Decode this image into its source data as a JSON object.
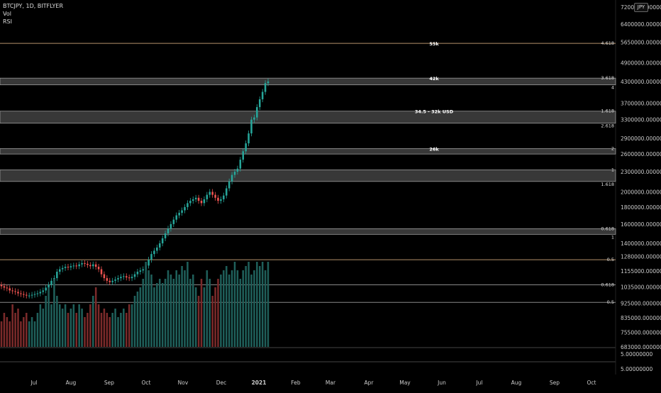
{
  "header": {
    "symbol_line": "BTCJPY, 1D, BITFLYER",
    "indicator_vol": "Vol",
    "indicator_rsi": "RSI",
    "currency": "JPY"
  },
  "colors": {
    "background": "#000000",
    "up": "#26a69a",
    "down": "#ef5350",
    "vol_up": "#1f5f5a",
    "vol_down": "#7a2a2a",
    "fib_line": "#b4906a",
    "zone_fill": "#666666",
    "text": "#cccccc"
  },
  "chart_data": {
    "type": "candlestick",
    "symbol": "BTCJPY",
    "timeframe": "1D",
    "exchange": "BITFLYER",
    "x_axis_labels": [
      "Jul",
      "Aug",
      "Sep",
      "Oct",
      "Nov",
      "Dec",
      "2021",
      "Feb",
      "Mar",
      "Apr",
      "May",
      "Jun",
      "Jul",
      "Aug",
      "Sep",
      "Oct"
    ],
    "price_axis_labels": [
      "7200000.00000000",
      "6400000.00000000",
      "5650000.00000000",
      "4900000.00000000",
      "4300000.00000000",
      "3700000.00000000",
      "3300000.00000000",
      "2900000.00000000",
      "2600000.00000000",
      "2300000.00000000",
      "2000000.00000000",
      "1800000.00000000",
      "1600000.00000000",
      "1400000.00000000",
      "1280000.00000000",
      "1155000.00000000",
      "1035000.00000000",
      "925000.00000000",
      "835000.00000000",
      "755000.00000000",
      "683000.00000000"
    ],
    "vol_axis_labels": [
      "5.00000000"
    ],
    "rsi_axis_labels": [
      "5.00000000"
    ],
    "price_range": [
      683000,
      7200000
    ],
    "scale": "log",
    "levels": [
      {
        "price": 5600000,
        "right_label": "4.618",
        "text": "55k",
        "style": "line"
      },
      {
        "price": 4400000,
        "price_low": 4200000,
        "right_label": "3.618",
        "right_label_2": "4",
        "text": "42k",
        "style": "zone"
      },
      {
        "price": 3500000,
        "price_low": 3220000,
        "right_label": "1.618",
        "right_label_2": "2.618",
        "text": "34.5 - 32k USD",
        "style": "zone"
      },
      {
        "price": 2700000,
        "price_low": 2600000,
        "right_label": "2",
        "text": "26k",
        "style": "zone"
      },
      {
        "price": 2330000,
        "price_low": 2150000,
        "right_label": "1",
        "right_label_2": "1.618",
        "text": "",
        "style": "zone"
      },
      {
        "price": 1550000,
        "price_low": 1490000,
        "right_label": "0.618",
        "right_label_2": "1",
        "text": "",
        "style": "zone"
      },
      {
        "price": 1250000,
        "right_label": "0.5",
        "text": "",
        "style": "line"
      },
      {
        "price": 1050000,
        "right_label": "0.618",
        "text": "",
        "style": "line"
      },
      {
        "price": 930000,
        "right_label": "0.5",
        "text": "",
        "style": "line"
      }
    ],
    "closes": [
      1040000,
      1030000,
      1025000,
      1010000,
      1005000,
      1000000,
      990000,
      985000,
      980000,
      975000,
      975000,
      980000,
      985000,
      990000,
      1000000,
      1010000,
      1030000,
      1050000,
      1080000,
      1100000,
      1150000,
      1170000,
      1180000,
      1190000,
      1185000,
      1195000,
      1200000,
      1195000,
      1210000,
      1220000,
      1215000,
      1205000,
      1195000,
      1210000,
      1190000,
      1170000,
      1130000,
      1100000,
      1080000,
      1070000,
      1080000,
      1090000,
      1100000,
      1110000,
      1115000,
      1105000,
      1100000,
      1110000,
      1130000,
      1150000,
      1160000,
      1170000,
      1200000,
      1250000,
      1300000,
      1330000,
      1360000,
      1400000,
      1450000,
      1500000,
      1550000,
      1600000,
      1650000,
      1700000,
      1730000,
      1760000,
      1800000,
      1850000,
      1880000,
      1900000,
      1920000,
      1880000,
      1850000,
      1900000,
      1960000,
      2000000,
      1960000,
      1920000,
      1880000,
      1900000,
      1950000,
      2050000,
      2150000,
      2250000,
      2300000,
      2350000,
      2500000,
      2650000,
      2800000,
      3000000,
      3300000,
      3350000,
      3600000,
      3800000,
      4000000,
      4250000,
      4300000
    ],
    "volumes": [
      0.3,
      0.4,
      0.35,
      0.3,
      0.5,
      0.4,
      0.45,
      0.3,
      0.35,
      0.4,
      0.3,
      0.35,
      0.3,
      0.4,
      0.5,
      0.45,
      0.6,
      0.7,
      0.5,
      0.8,
      0.6,
      0.5,
      0.45,
      0.5,
      0.4,
      0.45,
      0.5,
      0.4,
      0.5,
      0.45,
      0.35,
      0.4,
      0.5,
      0.6,
      0.7,
      0.5,
      0.4,
      0.45,
      0.4,
      0.35,
      0.4,
      0.45,
      0.35,
      0.4,
      0.45,
      0.4,
      0.5,
      0.5,
      0.6,
      0.65,
      0.7,
      0.8,
      1.0,
      0.9,
      0.85,
      0.7,
      0.75,
      0.8,
      0.75,
      0.8,
      0.9,
      0.85,
      0.8,
      0.9,
      0.85,
      0.95,
      0.9,
      1.0,
      0.8,
      0.85,
      0.7,
      0.6,
      0.8,
      0.7,
      0.9,
      0.8,
      0.6,
      0.7,
      0.8,
      0.85,
      0.9,
      0.95,
      0.85,
      0.9,
      1.0,
      0.9,
      0.8,
      0.9,
      0.95,
      1.0,
      0.85,
      0.9,
      1.0,
      0.95,
      1.0,
      0.9,
      1.0
    ]
  }
}
